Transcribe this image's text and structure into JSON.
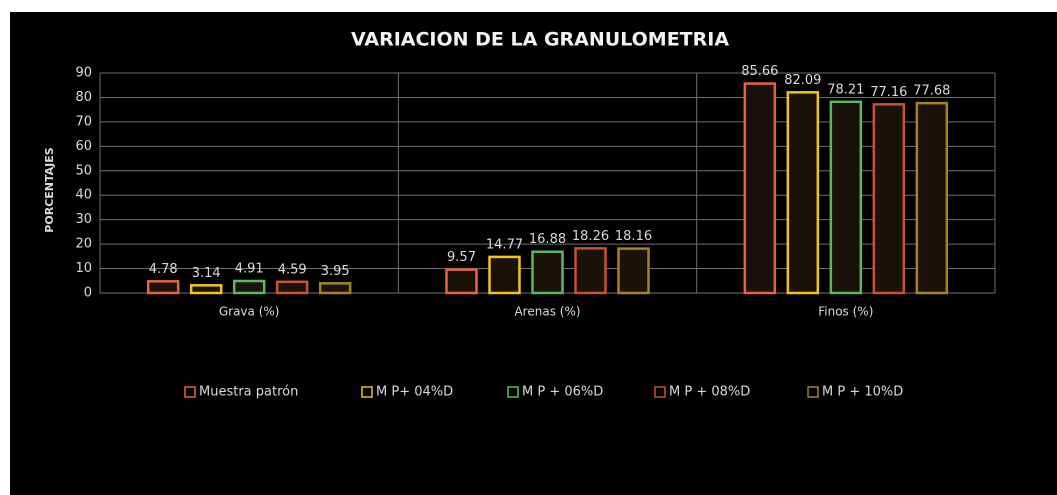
{
  "chart_data": {
    "type": "bar",
    "title": "VARIACION DE LA GRANULOMETRIA",
    "y_label": "PORCENTAJES",
    "categories": [
      "Grava (%)",
      "Arenas (%)",
      "Finos (%)"
    ],
    "series": [
      {
        "name": "Muestra patrón",
        "color": "#e8643c",
        "values": [
          4.78,
          9.57,
          85.66
        ]
      },
      {
        "name": "M P+ 04%D",
        "color": "#f0c419",
        "values": [
          3.14,
          14.77,
          82.09
        ]
      },
      {
        "name": "M P + 06%D",
        "color": "#5cb85c",
        "values": [
          4.91,
          16.88,
          78.21
        ]
      },
      {
        "name": "M P + 08%D",
        "color": "#c8532e",
        "values": [
          4.59,
          18.26,
          77.16
        ]
      },
      {
        "name": "M P + 10%D",
        "color": "#a8821e",
        "values": [
          3.95,
          18.16,
          77.68
        ]
      }
    ],
    "ylim": [
      0,
      90
    ],
    "yticks": [
      0,
      10,
      20,
      30,
      40,
      50,
      60,
      70,
      80,
      90
    ],
    "grid": true,
    "legend": "bottom"
  }
}
